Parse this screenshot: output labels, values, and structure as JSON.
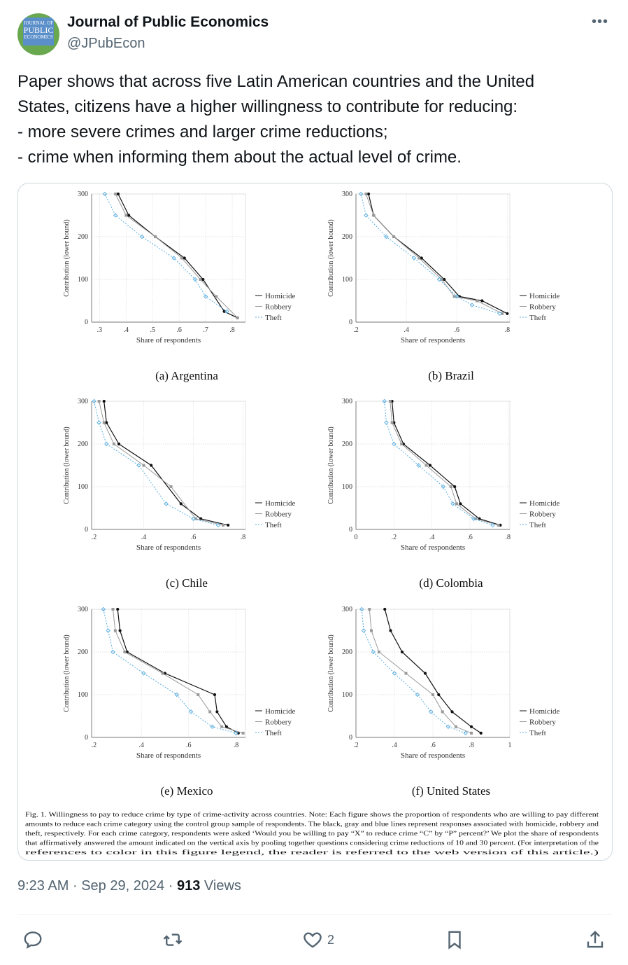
{
  "author": {
    "name": "Journal of Public Economics",
    "handle": "@JPubEcon",
    "avatar_text": [
      "JOURNAL OF",
      "PUBLIC",
      "ECONOMICS"
    ]
  },
  "more_icon": "ellipsis-icon",
  "tweet_text": [
    "Paper shows that across five Latin American countries and the United",
    "States, citizens have a higher willingness to contribute for reducing:",
    "- more severe crimes and larger crime reductions;",
    "- crime when informing them about the actual level of crime."
  ],
  "meta": {
    "time": "9:23 AM",
    "sep": "·",
    "date": "Sep 29, 2024",
    "views_count": "913",
    "views_label": "Views"
  },
  "actions": {
    "reply_icon": "reply-icon",
    "retweet_icon": "retweet-icon",
    "like_icon": "heart-icon",
    "like_count": "2",
    "bookmark_icon": "bookmark-icon",
    "share_icon": "share-icon"
  },
  "colors": {
    "homicide": "#111111",
    "robbery": "#999999",
    "theft": "#5aaee0"
  },
  "figure": {
    "ylabel": "Contribution (lower bound)",
    "xlabel": "Share of respondents",
    "legend": [
      "Homicide",
      "Robbery",
      "Theft"
    ],
    "caption": [
      "Fig. 1.  Willingness to pay to reduce crime by type of crime-activity across countries. Note: Each figure shows the proportion of respondents who are willing to pay different",
      "amounts to reduce each crime category using the control group sample of respondents. The black, gray and blue lines represent responses associated with homicide, robbery and",
      "theft, respectively. For each crime category, respondents were asked ‘Would you be willing to pay “X” to reduce crime “C” by “P” percent?’ We plot the share of respondents",
      "that affirmatively answered the amount indicated on the vertical axis by pooling together questions considering crime reductions of 10 and 30 percent.  (For interpretation of the",
      "references to color in this figure legend, the reader is referred to the web version of this article.)"
    ]
  },
  "chart_data": [
    {
      "type": "line",
      "title": "(a) Argentina",
      "xlabel": "Share of respondents",
      "ylabel": "Contribution (lower bound)",
      "xlim": [
        0.27,
        0.85
      ],
      "xticks": [
        ".3",
        ".4",
        ".5",
        ".6",
        ".7",
        ".8"
      ],
      "xtick_values": [
        0.3,
        0.4,
        0.5,
        0.6,
        0.7,
        0.8
      ],
      "ylim": [
        0,
        300
      ],
      "yticks": [
        0,
        100,
        200,
        300
      ],
      "grid": true,
      "legend": "right",
      "series": [
        {
          "name": "Homicide",
          "x": [
            0.37,
            0.41,
            0.51,
            0.62,
            0.69,
            0.77,
            0.82
          ],
          "y": [
            300,
            250,
            200,
            150,
            100,
            25,
            10
          ]
        },
        {
          "name": "Robbery",
          "x": [
            0.36,
            0.4,
            0.51,
            0.61,
            0.68,
            0.74,
            0.82
          ],
          "y": [
            300,
            250,
            200,
            150,
            100,
            60,
            10
          ]
        },
        {
          "name": "Theft",
          "x": [
            0.32,
            0.36,
            0.46,
            0.58,
            0.66,
            0.7,
            0.78
          ],
          "y": [
            300,
            250,
            200,
            150,
            100,
            60,
            25
          ]
        }
      ]
    },
    {
      "type": "line",
      "title": "(b) Brazil",
      "xlabel": "Share of respondents",
      "ylabel": "Contribution (lower bound)",
      "xlim": [
        0.2,
        0.81
      ],
      "xticks": [
        ".2",
        ".4",
        ".6",
        ".8"
      ],
      "xtick_values": [
        0.2,
        0.4,
        0.6,
        0.8
      ],
      "ylim": [
        0,
        300
      ],
      "yticks": [
        0,
        100,
        200,
        300
      ],
      "grid": true,
      "legend": "right",
      "series": [
        {
          "name": "Homicide",
          "x": [
            0.25,
            0.27,
            0.35,
            0.46,
            0.55,
            0.61,
            0.7,
            0.8
          ],
          "y": [
            300,
            250,
            200,
            150,
            100,
            60,
            50,
            20
          ]
        },
        {
          "name": "Robbery",
          "x": [
            0.24,
            0.27,
            0.35,
            0.45,
            0.54,
            0.59,
            0.68,
            0.78
          ],
          "y": [
            300,
            250,
            200,
            150,
            100,
            60,
            50,
            20
          ]
        },
        {
          "name": "Theft",
          "x": [
            0.22,
            0.24,
            0.32,
            0.43,
            0.53,
            0.6,
            0.66,
            0.77
          ],
          "y": [
            300,
            250,
            200,
            150,
            100,
            60,
            40,
            20
          ]
        }
      ]
    },
    {
      "type": "line",
      "title": "(c) Chile",
      "xlabel": "Share of respondents",
      "ylabel": "Contribution (lower bound)",
      "xlim": [
        0.19,
        0.81
      ],
      "xticks": [
        ".2",
        ".4",
        ".6",
        ".8"
      ],
      "xtick_values": [
        0.2,
        0.4,
        0.6,
        0.8
      ],
      "ylim": [
        0,
        300
      ],
      "yticks": [
        0,
        100,
        200,
        300
      ],
      "grid": true,
      "legend": "right",
      "series": [
        {
          "name": "Homicide",
          "x": [
            0.24,
            0.25,
            0.3,
            0.43,
            0.55,
            0.63,
            0.74
          ],
          "y": [
            300,
            250,
            200,
            150,
            60,
            25,
            10
          ]
        },
        {
          "name": "Robbery",
          "x": [
            0.22,
            0.24,
            0.28,
            0.4,
            0.51,
            0.61,
            0.72
          ],
          "y": [
            300,
            250,
            200,
            150,
            100,
            25,
            10
          ]
        },
        {
          "name": "Theft",
          "x": [
            0.2,
            0.22,
            0.25,
            0.38,
            0.49,
            0.6,
            0.7
          ],
          "y": [
            300,
            250,
            200,
            150,
            60,
            25,
            10
          ]
        }
      ]
    },
    {
      "type": "line",
      "title": "(d) Colombia",
      "xlabel": "Share of respondents",
      "ylabel": "Contribution (lower bound)",
      "xlim": [
        0,
        0.81
      ],
      "xticks": [
        "0",
        ".2",
        ".4",
        ".6",
        ".8"
      ],
      "xtick_values": [
        0,
        0.2,
        0.4,
        0.6,
        0.8
      ],
      "ylim": [
        0,
        300
      ],
      "yticks": [
        0,
        100,
        200,
        300
      ],
      "grid": true,
      "legend": "right",
      "series": [
        {
          "name": "Homicide",
          "x": [
            0.19,
            0.2,
            0.25,
            0.39,
            0.52,
            0.55,
            0.65,
            0.76
          ],
          "y": [
            300,
            250,
            200,
            150,
            100,
            60,
            25,
            10
          ]
        },
        {
          "name": "Robbery",
          "x": [
            0.18,
            0.19,
            0.24,
            0.37,
            0.5,
            0.53,
            0.63,
            0.75
          ],
          "y": [
            300,
            250,
            200,
            150,
            100,
            60,
            25,
            10
          ]
        },
        {
          "name": "Theft",
          "x": [
            0.15,
            0.16,
            0.2,
            0.33,
            0.46,
            0.51,
            0.62,
            0.72
          ],
          "y": [
            300,
            250,
            200,
            150,
            100,
            60,
            25,
            10
          ]
        }
      ]
    },
    {
      "type": "line",
      "title": "(e) Mexico",
      "xlabel": "Share of respondents",
      "ylabel": "Contribution (lower bound)",
      "xlim": [
        0.19,
        0.84
      ],
      "xticks": [
        ".2",
        ".4",
        ".6",
        ".8"
      ],
      "xtick_values": [
        0.2,
        0.4,
        0.6,
        0.8
      ],
      "ylim": [
        0,
        300
      ],
      "yticks": [
        0,
        100,
        200,
        300
      ],
      "grid": true,
      "legend": "right",
      "series": [
        {
          "name": "Homicide",
          "x": [
            0.3,
            0.31,
            0.34,
            0.5,
            0.71,
            0.72,
            0.76,
            0.81
          ],
          "y": [
            300,
            250,
            200,
            150,
            100,
            60,
            25,
            10
          ]
        },
        {
          "name": "Robbery",
          "x": [
            0.28,
            0.29,
            0.33,
            0.49,
            0.64,
            0.69,
            0.74,
            0.83
          ],
          "y": [
            300,
            250,
            200,
            150,
            100,
            60,
            25,
            10
          ]
        },
        {
          "name": "Theft",
          "x": [
            0.24,
            0.26,
            0.28,
            0.41,
            0.55,
            0.61,
            0.7,
            0.8
          ],
          "y": [
            300,
            250,
            200,
            150,
            100,
            60,
            25,
            10
          ]
        }
      ]
    },
    {
      "type": "line",
      "title": "(f) United States",
      "xlabel": "Share of respondents",
      "ylabel": "Contribution (lower bound)",
      "xlim": [
        0.2,
        1.0
      ],
      "xticks": [
        ".2",
        ".4",
        ".6",
        ".8",
        "1"
      ],
      "xtick_values": [
        0.2,
        0.4,
        0.6,
        0.8,
        1.0
      ],
      "ylim": [
        0,
        300
      ],
      "yticks": [
        0,
        100,
        200,
        300
      ],
      "grid": true,
      "legend": "right",
      "series": [
        {
          "name": "Homicide",
          "x": [
            0.35,
            0.38,
            0.44,
            0.56,
            0.63,
            0.7,
            0.8,
            0.85
          ],
          "y": [
            300,
            250,
            200,
            150,
            100,
            60,
            25,
            10
          ]
        },
        {
          "name": "Robbery",
          "x": [
            0.27,
            0.28,
            0.32,
            0.46,
            0.6,
            0.65,
            0.72,
            0.8
          ],
          "y": [
            300,
            250,
            200,
            150,
            100,
            60,
            25,
            10
          ]
        },
        {
          "name": "Theft",
          "x": [
            0.23,
            0.24,
            0.29,
            0.4,
            0.52,
            0.59,
            0.68,
            0.77
          ],
          "y": [
            300,
            250,
            200,
            150,
            100,
            60,
            25,
            10
          ]
        }
      ]
    }
  ]
}
